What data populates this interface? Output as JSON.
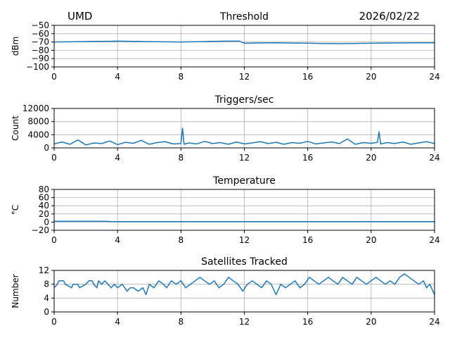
{
  "header": {
    "left": "UMD",
    "right": "2026/02/22"
  },
  "chart_data": [
    {
      "type": "line",
      "title": "Threshold",
      "ylabel": "dBm",
      "xlim": [
        0,
        24
      ],
      "ylim": [
        -100,
        -50
      ],
      "xticks": [
        0,
        4,
        8,
        12,
        16,
        20,
        24
      ],
      "yticks": [
        -50,
        -60,
        -70,
        -80,
        -90,
        -100
      ],
      "ytick_labels": [
        "−50",
        "−60",
        "−70",
        "−80",
        "−90",
        "−100"
      ],
      "grid": true,
      "color": "#1f77b4",
      "series": [
        {
          "x": [
            0,
            1,
            2,
            3,
            4,
            5,
            6,
            7,
            8,
            9,
            10,
            11,
            11.7,
            12,
            13,
            14,
            15,
            16,
            17,
            18,
            19,
            20,
            21,
            22,
            23,
            24
          ],
          "y": [
            -70,
            -69.8,
            -69.5,
            -69.2,
            -69,
            -69.3,
            -69.6,
            -69.8,
            -70,
            -69.7,
            -69.3,
            -69,
            -69,
            -71.5,
            -71.2,
            -71,
            -71.3,
            -71.5,
            -71.8,
            -72,
            -71.8,
            -71.5,
            -71.3,
            -71.2,
            -71,
            -71
          ]
        }
      ]
    },
    {
      "type": "line",
      "title": "Triggers/sec",
      "ylabel": "Count",
      "xlim": [
        0,
        24
      ],
      "ylim": [
        0,
        12000
      ],
      "xticks": [
        0,
        4,
        8,
        12,
        16,
        20,
        24
      ],
      "yticks": [
        0,
        4000,
        8000,
        12000
      ],
      "ytick_labels": [
        "0",
        "4000",
        "8000",
        "12000"
      ],
      "grid": true,
      "color": "#1f77b4",
      "series": [
        {
          "x": [
            0,
            0.5,
            1,
            1.5,
            2,
            2.5,
            3,
            3.5,
            4,
            4.5,
            5,
            5.5,
            6,
            6.5,
            7,
            7.5,
            8,
            8.1,
            8.2,
            8.5,
            9,
            9.5,
            10,
            10.5,
            11,
            11.5,
            12,
            12.5,
            13,
            13.5,
            14,
            14.5,
            15,
            15.5,
            16,
            16.5,
            17,
            17.5,
            18,
            18.5,
            19,
            19.5,
            20,
            20.4,
            20.5,
            20.6,
            21,
            21.5,
            22,
            22.5,
            23,
            23.5,
            24
          ],
          "y": [
            1200,
            1800,
            1100,
            2400,
            900,
            1500,
            1300,
            2100,
            1000,
            1700,
            1400,
            2300,
            1100,
            1600,
            1900,
            1200,
            1300,
            6000,
            1100,
            1500,
            1200,
            2000,
            1300,
            1600,
            1100,
            1800,
            1200,
            1500,
            1900,
            1300,
            1700,
            1100,
            1600,
            1400,
            2000,
            1200,
            1500,
            1800,
            1300,
            2700,
            1100,
            1600,
            1400,
            1700,
            4900,
            1200,
            1600,
            1300,
            1800,
            1100,
            1500,
            1900,
            1300
          ]
        }
      ]
    },
    {
      "type": "line",
      "title": "Temperature",
      "ylabel": "°C",
      "xlim": [
        0,
        24
      ],
      "ylim": [
        -20,
        80
      ],
      "xticks": [
        0,
        4,
        8,
        12,
        16,
        20,
        24
      ],
      "yticks": [
        -20,
        0,
        20,
        40,
        60,
        80
      ],
      "ytick_labels": [
        "−20",
        "0",
        "20",
        "40",
        "60",
        "80"
      ],
      "grid": true,
      "color": "#1f77b4",
      "series": [
        {
          "x": [
            0,
            1,
            2,
            3,
            3.4,
            3.5,
            6,
            9,
            12,
            15,
            18,
            21,
            24
          ],
          "y": [
            2,
            2,
            2,
            2,
            2,
            1,
            1,
            1,
            1,
            1,
            1,
            1,
            1
          ]
        }
      ]
    },
    {
      "type": "line",
      "title": "Satellites Tracked",
      "ylabel": "Number",
      "xlim": [
        0,
        24
      ],
      "ylim": [
        0,
        12
      ],
      "xticks": [
        0,
        4,
        8,
        12,
        16,
        20,
        24
      ],
      "yticks": [
        0,
        4,
        8,
        12
      ],
      "ytick_labels": [
        "0",
        "4",
        "8",
        "12"
      ],
      "grid": true,
      "color": "#1f77b4",
      "series": [
        {
          "x": [
            0,
            0.2,
            0.3,
            0.6,
            0.7,
            1.1,
            1.2,
            1.5,
            1.6,
            2.0,
            2.2,
            2.4,
            2.5,
            2.7,
            2.8,
            3.0,
            3.2,
            3.6,
            3.8,
            4.0,
            4.3,
            4.6,
            4.8,
            5.0,
            5.3,
            5.6,
            5.8,
            6.0,
            6.3,
            6.6,
            6.9,
            7.1,
            7.4,
            7.7,
            8.0,
            8.3,
            8.6,
            8.9,
            9.2,
            9.5,
            9.8,
            10.1,
            10.4,
            10.7,
            11.0,
            11.3,
            11.6,
            11.9,
            12.2,
            12.5,
            12.8,
            13.1,
            13.4,
            13.7,
            14.0,
            14.3,
            14.6,
            14.9,
            15.2,
            15.5,
            15.8,
            16.1,
            16.4,
            16.7,
            17.0,
            17.3,
            17.6,
            17.9,
            18.2,
            18.5,
            18.8,
            19.1,
            19.4,
            19.7,
            20.0,
            20.3,
            20.6,
            20.9,
            21.2,
            21.5,
            21.8,
            22.1,
            22.4,
            22.7,
            23.0,
            23.3,
            23.5,
            23.7,
            23.9,
            24.0
          ],
          "y": [
            7,
            8,
            9,
            9,
            8,
            7,
            8,
            8,
            7,
            8,
            9,
            9,
            8,
            7,
            9,
            8,
            9,
            7,
            8,
            7,
            8,
            6,
            7,
            7,
            6,
            7,
            5,
            8,
            7,
            9,
            8,
            7,
            9,
            8,
            9,
            7,
            8,
            9,
            10,
            9,
            8,
            9,
            7,
            8,
            10,
            9,
            8,
            6,
            8,
            9,
            8,
            7,
            9,
            8,
            5,
            8,
            7,
            8,
            9,
            7,
            8,
            10,
            9,
            8,
            9,
            10,
            9,
            8,
            10,
            9,
            8,
            10,
            9,
            8,
            9,
            10,
            9,
            8,
            9,
            8,
            10,
            11,
            10,
            9,
            8,
            9,
            7,
            8,
            6,
            5
          ]
        }
      ]
    }
  ]
}
